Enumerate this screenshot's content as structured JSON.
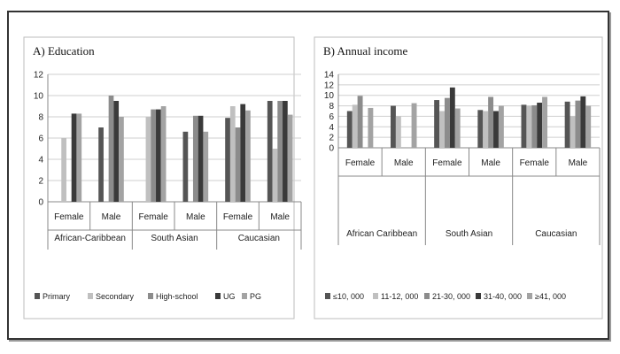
{
  "chart_data": [
    {
      "type": "bar",
      "title": "A)  Education",
      "groups": [
        "African-Caribbean",
        "South Asian",
        "Caucasian"
      ],
      "categories": [
        "Female",
        "Male",
        "Female",
        "Male",
        "Female",
        "Male"
      ],
      "ylim": [
        0,
        12
      ],
      "yticks": [
        0,
        2,
        4,
        6,
        8,
        10,
        12
      ],
      "grid": true,
      "legend_position": "bottom",
      "series": [
        {
          "name": "Primary",
          "color": "#555555",
          "values": [
            0,
            7,
            0,
            6.6,
            7.9,
            9.5
          ]
        },
        {
          "name": "Secondary",
          "color": "#c0c0c0",
          "values": [
            6,
            0,
            8,
            0,
            9,
            5
          ]
        },
        {
          "name": "High-school",
          "color": "#8c8c8c",
          "values": [
            0,
            10,
            8.7,
            8.1,
            7,
            9.5
          ]
        },
        {
          "name": "UG",
          "color": "#3a3a3a",
          "values": [
            8.3,
            9.5,
            8.7,
            8.1,
            9.2,
            9.5
          ]
        },
        {
          "name": "PG",
          "color": "#a3a3a3",
          "values": [
            8.3,
            8,
            9,
            6.6,
            8.6,
            8.2
          ]
        }
      ]
    },
    {
      "type": "bar",
      "title": "B)  Annual income",
      "groups": [
        "African Caribbean",
        "South Asian",
        "Caucasian"
      ],
      "categories": [
        "Female",
        "Male",
        "Female",
        "Male",
        "Female",
        "Male"
      ],
      "ylim": [
        0,
        14
      ],
      "yticks": [
        0,
        2,
        4,
        6,
        8,
        10,
        12,
        14
      ],
      "grid": true,
      "legend_position": "bottom",
      "series": [
        {
          "name": "≤10, 000",
          "color": "#555555",
          "values": [
            7,
            8,
            9.1,
            7.2,
            8.2,
            8.8
          ]
        },
        {
          "name": "11-12, 000",
          "color": "#c0c0c0",
          "values": [
            8.2,
            6,
            7,
            7,
            8,
            6
          ]
        },
        {
          "name": "21-30, 000",
          "color": "#8c8c8c",
          "values": [
            9.9,
            0,
            9.5,
            9.7,
            8.1,
            9
          ]
        },
        {
          "name": "31-40, 000",
          "color": "#3a3a3a",
          "values": [
            0,
            0,
            11.5,
            7,
            8.6,
            9.8
          ]
        },
        {
          "name": "≥41, 000",
          "color": "#a3a3a3",
          "values": [
            7.6,
            8.5,
            7.5,
            8,
            9.7,
            8
          ]
        }
      ]
    }
  ]
}
